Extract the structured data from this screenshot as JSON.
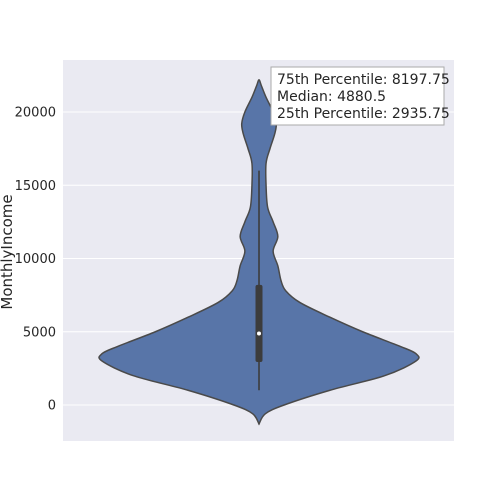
{
  "chart_data": {
    "type": "violin",
    "title": "",
    "xlabel": "",
    "ylabel": "MonthlyIncome",
    "ylim": [
      -2500,
      23000
    ],
    "yticks": [
      0,
      5000,
      10000,
      15000,
      20000
    ],
    "grid": true,
    "background": "#EAEAF2",
    "violin_color": "#5875A8",
    "edge_color": "#4A4A4A",
    "density_profile": [
      {
        "y": -1300,
        "w": 0.0
      },
      {
        "y": -600,
        "w": 0.04
      },
      {
        "y": 0,
        "w": 0.16
      },
      {
        "y": 1000,
        "w": 0.45
      },
      {
        "y": 2000,
        "w": 0.8
      },
      {
        "y": 3000,
        "w": 1.0
      },
      {
        "y": 3500,
        "w": 1.0
      },
      {
        "y": 4000,
        "w": 0.9
      },
      {
        "y": 5000,
        "w": 0.66
      },
      {
        "y": 6000,
        "w": 0.45
      },
      {
        "y": 7000,
        "w": 0.26
      },
      {
        "y": 7800,
        "w": 0.17
      },
      {
        "y": 8500,
        "w": 0.14
      },
      {
        "y": 9500,
        "w": 0.12
      },
      {
        "y": 10500,
        "w": 0.09
      },
      {
        "y": 11500,
        "w": 0.12
      },
      {
        "y": 12500,
        "w": 0.09
      },
      {
        "y": 13500,
        "w": 0.055
      },
      {
        "y": 15000,
        "w": 0.045
      },
      {
        "y": 16500,
        "w": 0.045
      },
      {
        "y": 17500,
        "w": 0.07
      },
      {
        "y": 18500,
        "w": 0.1
      },
      {
        "y": 19200,
        "w": 0.11
      },
      {
        "y": 20000,
        "w": 0.09
      },
      {
        "y": 21000,
        "w": 0.045
      },
      {
        "y": 21800,
        "w": 0.015
      },
      {
        "y": 22200,
        "w": 0.0
      }
    ],
    "whisker": {
      "low": 1009,
      "high": 16000
    },
    "box": {
      "q1": 2935.75,
      "median": 4880.5,
      "q3": 8197.75
    },
    "annotation": [
      "75th Percentile: 8197.75",
      "Median: 4880.5",
      "25th Percentile: 2935.75"
    ]
  }
}
